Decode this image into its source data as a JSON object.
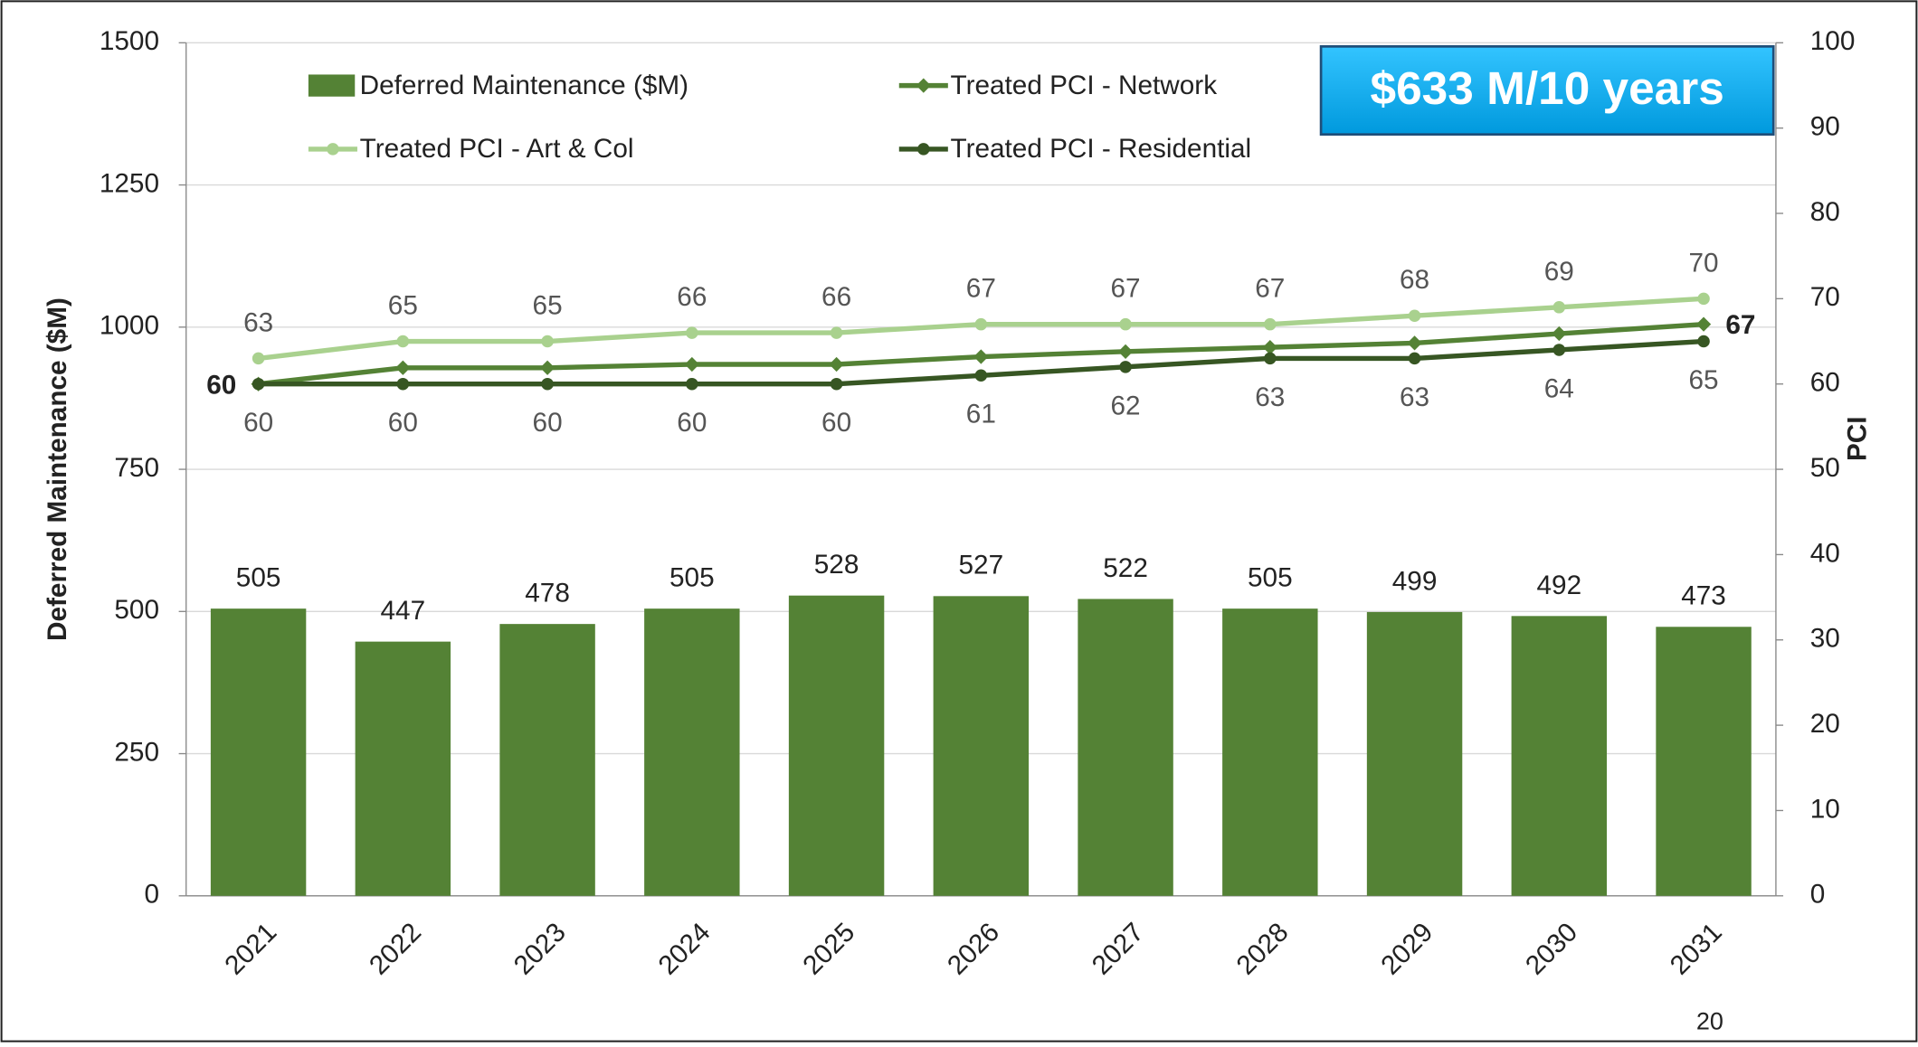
{
  "chart_data": {
    "type": "combo",
    "ylabel": "Deferred Maintenance ($M)",
    "y2label": "PCI",
    "categories": [
      "2021",
      "2022",
      "2023",
      "2024",
      "2025",
      "2026",
      "2027",
      "2028",
      "2029",
      "2030",
      "2031"
    ],
    "series": [
      {
        "name": "Deferred Maintenance ($M)",
        "type": "bar",
        "axis": "y",
        "color": "#548235",
        "values": [
          505,
          447,
          478,
          505,
          528,
          527,
          522,
          505,
          499,
          492,
          473
        ]
      },
      {
        "name": "Treated PCI - Network",
        "type": "line",
        "marker": "diamond",
        "axis": "y2",
        "color": "#548235",
        "values": [
          60,
          61.9,
          61.9,
          62.3,
          62.3,
          63.2,
          63.8,
          64.3,
          64.8,
          65.9,
          67
        ],
        "value_labels": [
          "60",
          null,
          null,
          null,
          null,
          null,
          null,
          null,
          null,
          null,
          "67"
        ]
      },
      {
        "name": "Treated PCI - Art & Col",
        "type": "line",
        "marker": "circle",
        "axis": "y2",
        "color": "#a9d18e",
        "values": [
          63,
          65,
          65,
          66,
          66,
          67,
          67,
          67,
          68,
          69,
          70
        ]
      },
      {
        "name": "Treated PCI - Residential",
        "type": "line",
        "marker": "circle",
        "axis": "y2",
        "color": "#375623",
        "values": [
          60,
          60,
          60,
          60,
          60,
          61,
          62,
          63,
          63,
          64,
          65
        ]
      }
    ],
    "ylim": [
      0,
      1500
    ],
    "yticks": [
      0,
      250,
      500,
      750,
      1000,
      1250,
      1500
    ],
    "y2lim": [
      0,
      100
    ],
    "y2ticks": [
      0,
      10,
      20,
      30,
      40,
      50,
      60,
      70,
      80,
      90,
      100
    ],
    "grid": true,
    "annotation": "$633 M/10 years",
    "page_number": "20"
  }
}
